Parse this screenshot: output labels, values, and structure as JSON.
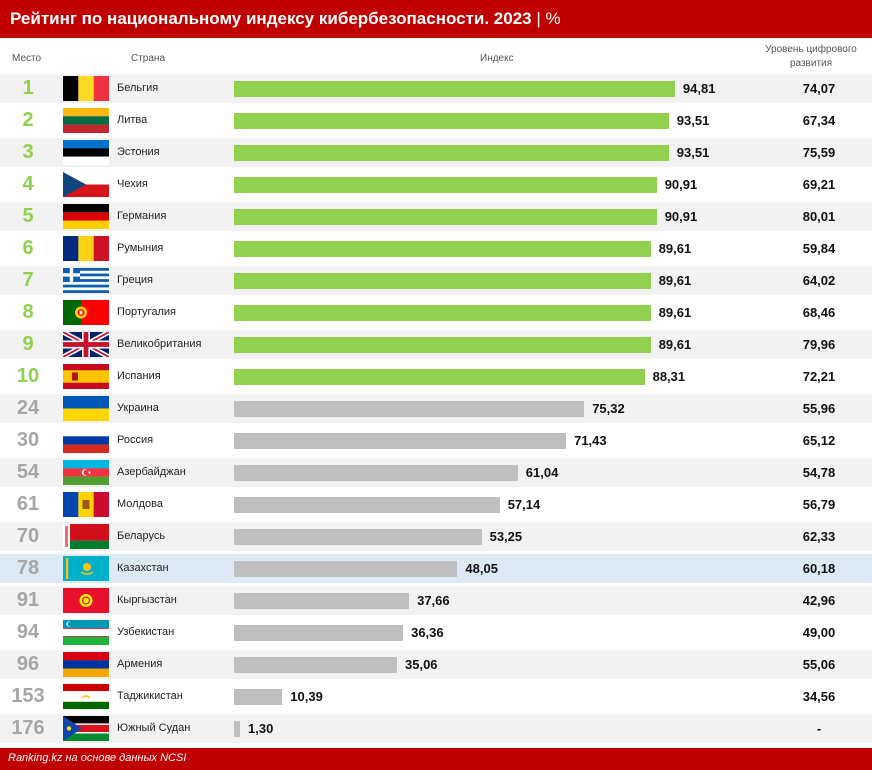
{
  "header": {
    "title": "Рейтинг по национальному индексу кибербезопасности. 2023",
    "separator": "|",
    "unit": "%"
  },
  "columns": {
    "rank": "Место",
    "country": "Страна",
    "index": "Индекс",
    "digital_line1": "Уровень цифрового",
    "digital_line2": "развития"
  },
  "footer": {
    "source": "Ranking.kz на основе данных NCSI"
  },
  "colors": {
    "header": "#c00000",
    "top_bar": "#92d050",
    "rest_bar": "#bfbfbf",
    "top_rank": "#8fd14f",
    "rest_rank": "#a6a6a6",
    "highlight_row": "#dde9f5"
  },
  "chart_data": {
    "type": "bar",
    "orientation": "horizontal",
    "title": "Рейтинг по национальному индексу кибербезопасности. 2023",
    "xlim": [
      0,
      100
    ],
    "grid": false,
    "highlighted_category": "Казахстан",
    "rows": [
      {
        "rank": "1",
        "country": "Бельгия",
        "index": 94.81,
        "index_label": "94,81",
        "digital": "74,07",
        "flag": "belgium-flag-icon"
      },
      {
        "rank": "2",
        "country": "Литва",
        "index": 93.51,
        "index_label": "93,51",
        "digital": "67,34",
        "flag": "lithuania-flag-icon"
      },
      {
        "rank": "3",
        "country": "Эстония",
        "index": 93.51,
        "index_label": "93,51",
        "digital": "75,59",
        "flag": "estonia-flag-icon"
      },
      {
        "rank": "4",
        "country": "Чехия",
        "index": 90.91,
        "index_label": "90,91",
        "digital": "69,21",
        "flag": "czechia-flag-icon"
      },
      {
        "rank": "5",
        "country": "Германия",
        "index": 90.91,
        "index_label": "90,91",
        "digital": "80,01",
        "flag": "germany-flag-icon"
      },
      {
        "rank": "6",
        "country": "Румыния",
        "index": 89.61,
        "index_label": "89,61",
        "digital": "59,84",
        "flag": "romania-flag-icon"
      },
      {
        "rank": "7",
        "country": "Греция",
        "index": 89.61,
        "index_label": "89,61",
        "digital": "64,02",
        "flag": "greece-flag-icon"
      },
      {
        "rank": "8",
        "country": "Португалия",
        "index": 89.61,
        "index_label": "89,61",
        "digital": "68,46",
        "flag": "portugal-flag-icon"
      },
      {
        "rank": "9",
        "country": "Великобритания",
        "index": 89.61,
        "index_label": "89,61",
        "digital": "79,96",
        "flag": "uk-flag-icon"
      },
      {
        "rank": "10",
        "country": "Испания",
        "index": 88.31,
        "index_label": "88,31",
        "digital": "72,21",
        "flag": "spain-flag-icon"
      },
      {
        "rank": "24",
        "country": "Украина",
        "index": 75.32,
        "index_label": "75,32",
        "digital": "55,96",
        "flag": "ukraine-flag-icon"
      },
      {
        "rank": "30",
        "country": "Россия",
        "index": 71.43,
        "index_label": "71,43",
        "digital": "65,12",
        "flag": "russia-flag-icon"
      },
      {
        "rank": "54",
        "country": "Азербайджан",
        "index": 61.04,
        "index_label": "61,04",
        "digital": "54,78",
        "flag": "azerbaijan-flag-icon"
      },
      {
        "rank": "61",
        "country": "Молдова",
        "index": 57.14,
        "index_label": "57,14",
        "digital": "56,79",
        "flag": "moldova-flag-icon"
      },
      {
        "rank": "70",
        "country": "Беларусь",
        "index": 53.25,
        "index_label": "53,25",
        "digital": "62,33",
        "flag": "belarus-flag-icon"
      },
      {
        "rank": "78",
        "country": "Казахстан",
        "index": 48.05,
        "index_label": "48,05",
        "digital": "60,18",
        "flag": "kazakhstan-flag-icon"
      },
      {
        "rank": "91",
        "country": "Кыргызстан",
        "index": 37.66,
        "index_label": "37,66",
        "digital": "42,96",
        "flag": "kyrgyzstan-flag-icon"
      },
      {
        "rank": "94",
        "country": "Узбекистан",
        "index": 36.36,
        "index_label": "36,36",
        "digital": "49,00",
        "flag": "uzbekistan-flag-icon"
      },
      {
        "rank": "96",
        "country": "Армения",
        "index": 35.06,
        "index_label": "35,06",
        "digital": "55,06",
        "flag": "armenia-flag-icon"
      },
      {
        "rank": "153",
        "country": "Таджикистан",
        "index": 10.39,
        "index_label": "10,39",
        "digital": "34,56",
        "flag": "tajikistan-flag-icon"
      },
      {
        "rank": "176",
        "country": "Южный Судан",
        "index": 1.3,
        "index_label": "1,30",
        "digital": "-",
        "flag": "south-sudan-flag-icon"
      }
    ]
  }
}
